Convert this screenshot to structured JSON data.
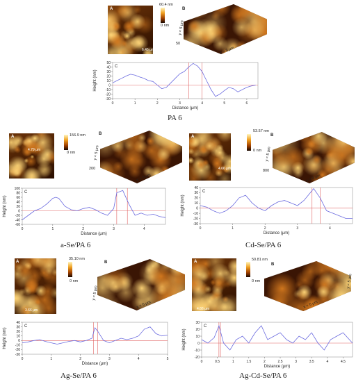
{
  "panels": {
    "pa6": {
      "caption": "PA 6",
      "afm2d": {
        "letter": "A",
        "scale_max": "60.4 nm",
        "scale_min": "0 nm",
        "scalebar": "6.45 μm"
      },
      "afm3d": {
        "letter": "B",
        "y_label": "y = 5 μm",
        "x_label": "x = 5 μm",
        "z_tick": "50"
      },
      "profile": {
        "letter": "C"
      }
    },
    "ase": {
      "caption": "a-Se/PA 6",
      "afm2d": {
        "letter": "A",
        "scale_max": "156.9 nm",
        "scale_min": "0 nm",
        "scalebar": "4.79 μm"
      },
      "afm3d": {
        "letter": "B",
        "y_label": "y = 5 μm",
        "x_label": "x = 5 μm",
        "z_tick": "200"
      },
      "profile": {
        "letter": "C"
      }
    },
    "cdse": {
      "caption": "Cd-Se/PA 6",
      "afm2d": {
        "letter": "A",
        "scale_max": "53.57 nm",
        "scale_min": "0 nm",
        "scalebar": "4.66 μm"
      },
      "afm3d": {
        "letter": "B",
        "y_label": "y = 5 μm",
        "x_label": "x = 5 μm",
        "z_tick": "800"
      },
      "profile": {
        "letter": "C"
      }
    },
    "agse": {
      "caption": "Ag-Se/PA 6",
      "afm2d": {
        "letter": "A",
        "scale_max": "35.10 nm",
        "scale_min": "0 nm",
        "scalebar": "3.66 μm"
      },
      "afm3d": {
        "letter": "B",
        "y_label": "y = 5 μm",
        "x_label": "x = 5 μm"
      },
      "profile": {
        "letter": "C"
      }
    },
    "agcdse": {
      "caption": "Ag-Cd-Se/PA 6",
      "afm2d": {
        "letter": "A",
        "scale_max": "50.81 nm",
        "scale_min": "0 nm",
        "scalebar": "4.66 μm"
      },
      "afm3d": {
        "letter": "B",
        "y_label": "y = 5 μm",
        "x_label": "x = 5 μm"
      },
      "profile": {
        "letter": "C"
      }
    }
  },
  "colors": {
    "profile_line": "#6a6adf",
    "marker_line": "#e06060",
    "afm_dark": "#2a0e00",
    "afm_bright": "#ffd070"
  },
  "chart_data": [
    {
      "type": "line",
      "id": "pa6",
      "xlabel": "Distance (μm)",
      "ylabel": "Height (nm)",
      "xlim": [
        0,
        6.5
      ],
      "ylim": [
        -30,
        50
      ],
      "xticks": [
        0,
        1,
        2,
        3,
        4,
        5,
        6
      ],
      "yticks": [
        -30,
        -20,
        -10,
        0,
        10,
        20,
        30,
        40,
        50
      ],
      "markers_x": [
        3.4,
        4.0
      ],
      "series": [
        {
          "x": [
            0,
            0.2,
            0.4,
            0.6,
            0.8,
            1.0,
            1.2,
            1.4,
            1.6,
            1.8,
            2.0,
            2.2,
            2.4,
            2.6,
            2.8,
            3.0,
            3.2,
            3.4,
            3.6,
            3.8,
            4.0,
            4.2,
            4.4,
            4.6,
            4.8,
            5.0,
            5.2,
            5.4,
            5.6,
            5.8,
            6.0,
            6.2,
            6.4
          ],
          "y": [
            5,
            10,
            15,
            20,
            24,
            22,
            18,
            15,
            10,
            8,
            0,
            -8,
            -5,
            5,
            15,
            25,
            30,
            40,
            48,
            42,
            30,
            10,
            -10,
            -25,
            -20,
            -12,
            -5,
            -8,
            -15,
            -10,
            -5,
            -2,
            0
          ]
        }
      ]
    },
    {
      "type": "line",
      "id": "ase",
      "xlabel": "Distance (μm)",
      "ylabel": "Height (nm)",
      "xlim": [
        0,
        4.7
      ],
      "ylim": [
        -60,
        100
      ],
      "xticks": [
        0,
        1,
        2,
        3,
        4
      ],
      "yticks": [
        -60,
        -40,
        -20,
        0,
        20,
        40,
        60,
        80,
        100
      ],
      "markers_x": [
        3.1,
        3.45
      ],
      "series": [
        {
          "x": [
            0,
            0.2,
            0.4,
            0.6,
            0.8,
            1.0,
            1.1,
            1.2,
            1.4,
            1.6,
            1.8,
            2.0,
            2.2,
            2.4,
            2.6,
            2.8,
            3.0,
            3.1,
            3.3,
            3.5,
            3.7,
            3.9,
            4.1,
            4.3,
            4.5,
            4.7
          ],
          "y": [
            -40,
            -20,
            0,
            10,
            30,
            55,
            60,
            55,
            20,
            5,
            0,
            10,
            15,
            5,
            -10,
            -20,
            10,
            80,
            90,
            30,
            -20,
            -10,
            -20,
            -15,
            -25,
            -30
          ]
        }
      ]
    },
    {
      "type": "line",
      "id": "cdse",
      "xlabel": "Distance (μm)",
      "ylabel": "Height (nm)",
      "xlim": [
        0,
        4.7
      ],
      "ylim": [
        -30,
        40
      ],
      "xticks": [
        0,
        1,
        2,
        3,
        4
      ],
      "yticks": [
        -30,
        -20,
        -10,
        0,
        10,
        20,
        30,
        40
      ],
      "markers_x": [
        3.45,
        3.7
      ],
      "series": [
        {
          "x": [
            0,
            0.2,
            0.4,
            0.6,
            0.8,
            1.0,
            1.2,
            1.4,
            1.6,
            1.8,
            2.0,
            2.2,
            2.4,
            2.6,
            2.8,
            3.0,
            3.2,
            3.4,
            3.5,
            3.7,
            3.9,
            4.1,
            4.3,
            4.5,
            4.7
          ],
          "y": [
            5,
            2,
            -5,
            -10,
            -5,
            5,
            20,
            25,
            10,
            0,
            -5,
            5,
            12,
            15,
            10,
            5,
            15,
            30,
            38,
            20,
            -5,
            -10,
            -15,
            -20,
            -20
          ]
        }
      ]
    },
    {
      "type": "line",
      "id": "agse",
      "xlabel": "Distance (μm)",
      "ylabel": "Height (nm)",
      "xlim": [
        0,
        5
      ],
      "ylim": [
        -30,
        40
      ],
      "xticks": [
        0,
        1,
        2,
        3,
        4,
        5
      ],
      "yticks": [
        -30,
        -20,
        -10,
        0,
        10,
        20,
        30,
        40
      ],
      "markers_x": [
        2.45,
        2.6
      ],
      "series": [
        {
          "x": [
            0,
            0.2,
            0.4,
            0.6,
            0.8,
            1.0,
            1.2,
            1.4,
            1.6,
            1.8,
            2.0,
            2.2,
            2.4,
            2.5,
            2.6,
            2.8,
            3.0,
            3.2,
            3.4,
            3.6,
            3.8,
            4.0,
            4.2,
            4.4,
            4.6,
            4.8,
            5.0
          ],
          "y": [
            -5,
            -3,
            0,
            2,
            -2,
            -5,
            -8,
            -5,
            -2,
            0,
            -3,
            0,
            5,
            28,
            20,
            0,
            -5,
            0,
            5,
            2,
            5,
            10,
            25,
            30,
            15,
            10,
            12
          ]
        }
      ]
    },
    {
      "type": "line",
      "id": "agcdse",
      "xlabel": "Distance (μm)",
      "ylabel": "Height (nm)",
      "xlim": [
        0,
        4.8
      ],
      "ylim": [
        -20,
        30
      ],
      "xticks": [
        0,
        0.5,
        1,
        1.5,
        2,
        2.5,
        3,
        3.5,
        4,
        4.5
      ],
      "yticks": [
        -20,
        -10,
        0,
        10,
        20,
        30
      ],
      "markers_x": [
        0.55,
        0.6
      ],
      "series": [
        {
          "x": [
            0,
            0.2,
            0.4,
            0.55,
            0.7,
            0.9,
            1.1,
            1.3,
            1.5,
            1.7,
            1.9,
            2.1,
            2.3,
            2.5,
            2.7,
            2.9,
            3.1,
            3.3,
            3.5,
            3.7,
            3.9,
            4.1,
            4.3,
            4.5,
            4.7,
            4.8
          ],
          "y": [
            5,
            0,
            8,
            25,
            0,
            -10,
            5,
            10,
            0,
            15,
            25,
            5,
            10,
            15,
            5,
            0,
            10,
            5,
            15,
            0,
            -10,
            5,
            10,
            15,
            5,
            0
          ]
        }
      ]
    }
  ]
}
